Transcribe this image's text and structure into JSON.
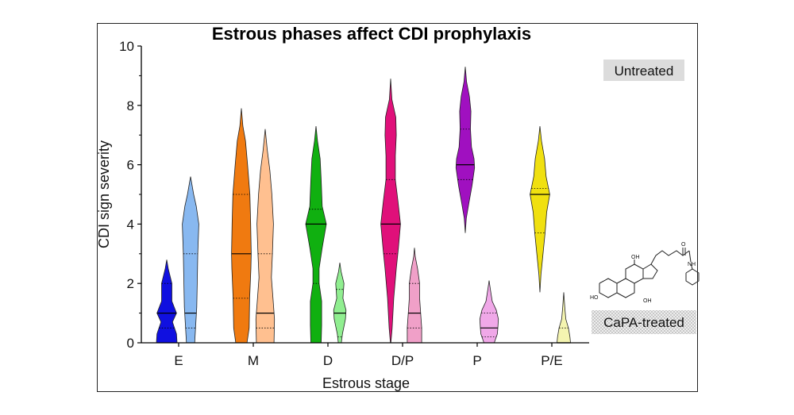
{
  "chart_data": {
    "type": "violin",
    "title": "Estrous phases affect CDI prophylaxis",
    "xlabel": "Estrous stage",
    "ylabel": "CDI sign severity",
    "ylim": [
      0,
      10
    ],
    "yticks": [
      "0",
      "2",
      "4",
      "6",
      "8",
      "10"
    ],
    "categories": [
      "E",
      "M",
      "D",
      "D/P",
      "P",
      "P/E"
    ],
    "series": [
      {
        "name": "Untreated",
        "colors": [
          "#1010e0",
          "#f07a10",
          "#10b010",
          "#e0107a",
          "#a010c0",
          "#f0e010"
        ],
        "groups": [
          {
            "category": "E",
            "min": 0,
            "max": 2.8,
            "median": 1,
            "q1": 0.5,
            "q3": 2,
            "profile": [
              [
                0,
                1.0
              ],
              [
                0.3,
                0.95
              ],
              [
                0.7,
                0.55
              ],
              [
                1.0,
                0.95
              ],
              [
                1.4,
                0.5
              ],
              [
                2.0,
                0.5
              ],
              [
                2.5,
                0.15
              ],
              [
                2.8,
                0
              ]
            ]
          },
          {
            "category": "M",
            "min": 0,
            "max": 7.9,
            "median": 3,
            "q1": 1.5,
            "q3": 5,
            "profile": [
              [
                0,
                0.55
              ],
              [
                0.5,
                0.75
              ],
              [
                1.5,
                0.8
              ],
              [
                2.5,
                0.92
              ],
              [
                3.0,
                0.95
              ],
              [
                4.0,
                0.9
              ],
              [
                5.0,
                0.82
              ],
              [
                6.0,
                0.6
              ],
              [
                6.8,
                0.4
              ],
              [
                7.3,
                0.15
              ],
              [
                7.9,
                0
              ]
            ]
          },
          {
            "category": "D",
            "min": 0,
            "max": 7.3,
            "median": 4,
            "q1": 2,
            "q3": 4.5,
            "profile": [
              [
                0,
                0.5
              ],
              [
                0.6,
                0.55
              ],
              [
                1.4,
                0.55
              ],
              [
                2.0,
                0.3
              ],
              [
                2.5,
                0.3
              ],
              [
                3.2,
                0.6
              ],
              [
                4.0,
                1.0
              ],
              [
                4.6,
                0.6
              ],
              [
                5.5,
                0.5
              ],
              [
                6.2,
                0.4
              ],
              [
                6.8,
                0.15
              ],
              [
                7.3,
                0
              ]
            ]
          },
          {
            "category": "D/P",
            "min": 0,
            "max": 8.9,
            "median": 4,
            "q1": 3,
            "q3": 5.5,
            "profile": [
              [
                0,
                0.02
              ],
              [
                0.5,
                0.15
              ],
              [
                1.5,
                0.3
              ],
              [
                2.5,
                0.55
              ],
              [
                3.2,
                0.75
              ],
              [
                4.0,
                0.95
              ],
              [
                4.8,
                0.7
              ],
              [
                5.5,
                0.45
              ],
              [
                6.3,
                0.45
              ],
              [
                7.0,
                0.55
              ],
              [
                7.6,
                0.5
              ],
              [
                8.2,
                0.12
              ],
              [
                8.9,
                0
              ]
            ]
          },
          {
            "category": "P",
            "min": 3.7,
            "max": 9.3,
            "median": 6,
            "q1": 5.5,
            "q3": 7.2,
            "profile": [
              [
                3.7,
                0
              ],
              [
                4.2,
                0.1
              ],
              [
                4.7,
                0.35
              ],
              [
                5.3,
                0.65
              ],
              [
                5.9,
                0.9
              ],
              [
                6.2,
                0.85
              ],
              [
                6.6,
                0.6
              ],
              [
                7.2,
                0.5
              ],
              [
                7.8,
                0.55
              ],
              [
                8.3,
                0.4
              ],
              [
                8.8,
                0.12
              ],
              [
                9.3,
                0
              ]
            ]
          },
          {
            "category": "P/E",
            "min": 1.7,
            "max": 7.3,
            "median": 5,
            "q1": 3.7,
            "q3": 5.2,
            "profile": [
              [
                1.7,
                0
              ],
              [
                2.3,
                0.1
              ],
              [
                3.0,
                0.3
              ],
              [
                3.7,
                0.5
              ],
              [
                4.4,
                0.65
              ],
              [
                5.0,
                0.95
              ],
              [
                5.6,
                0.6
              ],
              [
                6.2,
                0.45
              ],
              [
                6.8,
                0.15
              ],
              [
                7.3,
                0
              ]
            ]
          }
        ]
      },
      {
        "name": "CaPA-treated",
        "colors": [
          "#88b8f0",
          "#ffc090",
          "#90ee90",
          "#f0a0c8",
          "#f0a8e8",
          "#f4f4b0"
        ],
        "groups": [
          {
            "category": "E",
            "min": 0,
            "max": 5.6,
            "median": 1,
            "q1": 0.5,
            "q3": 3,
            "profile": [
              [
                0,
                0.4
              ],
              [
                0.6,
                0.5
              ],
              [
                1.2,
                0.6
              ],
              [
                2.0,
                0.65
              ],
              [
                3.0,
                0.7
              ],
              [
                4.0,
                0.8
              ],
              [
                4.6,
                0.55
              ],
              [
                5.0,
                0.3
              ],
              [
                5.6,
                0
              ]
            ]
          },
          {
            "category": "M",
            "min": 0,
            "max": 7.2,
            "median": 1,
            "q1": 0.5,
            "q3": 3,
            "profile": [
              [
                0,
                0.85
              ],
              [
                0.8,
                0.9
              ],
              [
                1.5,
                0.75
              ],
              [
                2.2,
                0.6
              ],
              [
                3.0,
                0.7
              ],
              [
                4.0,
                0.8
              ],
              [
                5.0,
                0.65
              ],
              [
                5.8,
                0.45
              ],
              [
                6.5,
                0.2
              ],
              [
                7.2,
                0
              ]
            ]
          },
          {
            "category": "D",
            "min": 0,
            "max": 2.7,
            "median": 1,
            "q1": 0.2,
            "q3": 1.8,
            "profile": [
              [
                0,
                0.15
              ],
              [
                0.3,
                0.25
              ],
              [
                0.8,
                0.55
              ],
              [
                1.1,
                0.6
              ],
              [
                1.5,
                0.3
              ],
              [
                2.0,
                0.4
              ],
              [
                2.4,
                0.12
              ],
              [
                2.7,
                0
              ]
            ]
          },
          {
            "category": "D/P",
            "min": 0,
            "max": 3.2,
            "median": 1,
            "q1": 0.5,
            "q3": 2,
            "profile": [
              [
                0,
                0.7
              ],
              [
                0.5,
                0.7
              ],
              [
                1.0,
                0.6
              ],
              [
                1.5,
                0.5
              ],
              [
                2.0,
                0.5
              ],
              [
                2.5,
                0.3
              ],
              [
                2.9,
                0.08
              ],
              [
                3.2,
                0
              ]
            ]
          },
          {
            "category": "P",
            "min": 0,
            "max": 2.1,
            "median": 0.5,
            "q1": 0.2,
            "q3": 1,
            "profile": [
              [
                0,
                0.5
              ],
              [
                0.3,
                0.8
              ],
              [
                0.5,
                0.85
              ],
              [
                0.8,
                0.9
              ],
              [
                1.1,
                0.7
              ],
              [
                1.4,
                0.3
              ],
              [
                1.8,
                0.12
              ],
              [
                2.1,
                0
              ]
            ]
          },
          {
            "category": "P/E",
            "min": 0,
            "max": 1.7,
            "median": 0,
            "q1": 0,
            "q3": 0.5,
            "profile": [
              [
                0,
                0.65
              ],
              [
                0.2,
                0.6
              ],
              [
                0.5,
                0.45
              ],
              [
                0.8,
                0.2
              ],
              [
                1.2,
                0.1
              ],
              [
                1.7,
                0
              ]
            ]
          }
        ]
      }
    ],
    "legend": [
      "Untreated",
      "CaPA-treated"
    ],
    "grid": false
  },
  "molecule": {
    "labels": [
      "OH",
      "HO",
      "OH",
      "NH",
      "O"
    ]
  }
}
